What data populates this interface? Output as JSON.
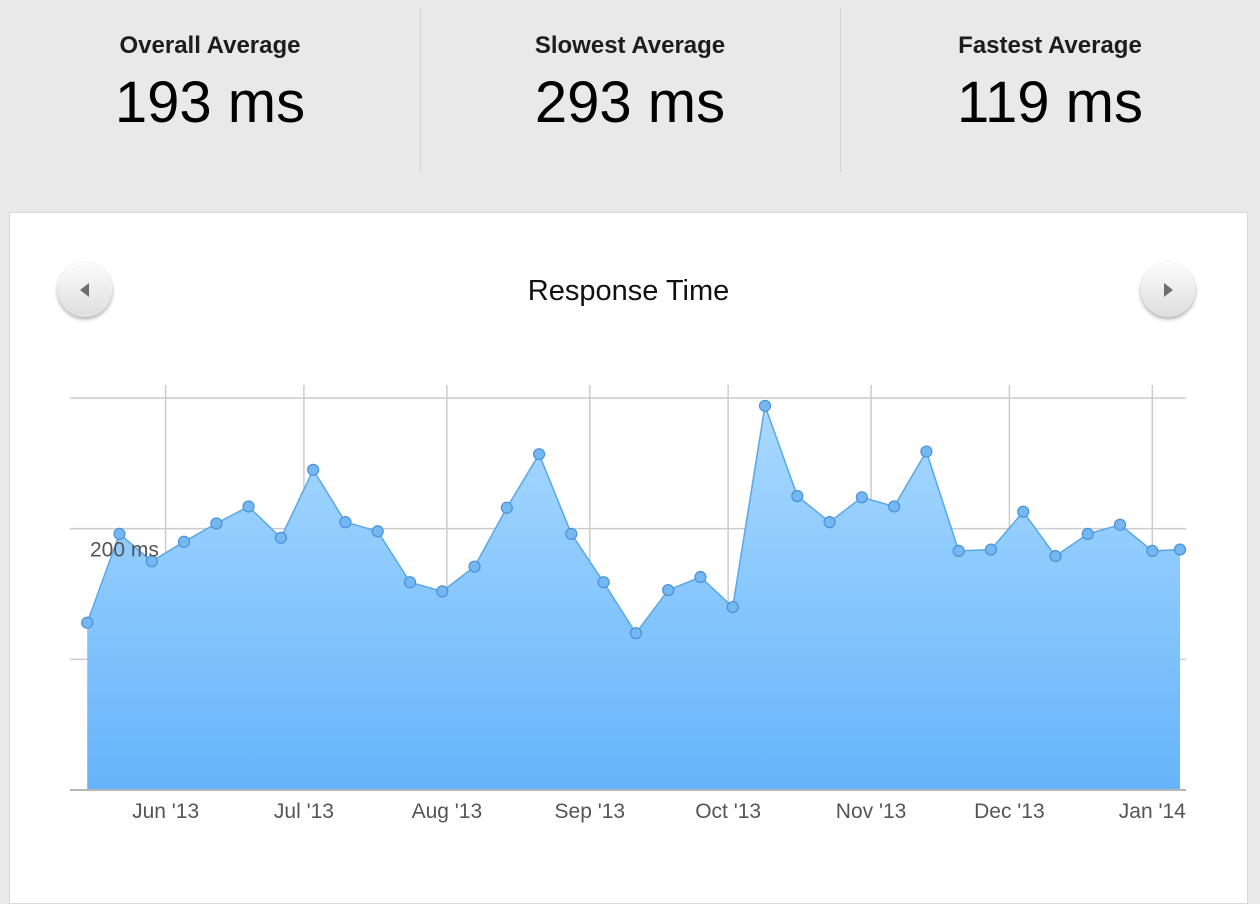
{
  "stats": [
    {
      "label": "Overall Average",
      "value": "193 ms"
    },
    {
      "label": "Slowest Average",
      "value": "293 ms"
    },
    {
      "label": "Fastest Average",
      "value": "119 ms"
    }
  ],
  "nav": {
    "prev_icon": "triangle-left-icon",
    "next_icon": "triangle-right-icon"
  },
  "colors": {
    "line": "#5aa7e8",
    "fill_top": "#a9d9ff",
    "fill_bottom": "#66b4fb",
    "point": "#74b8f2",
    "grid": "#cccccc"
  },
  "chart_data": {
    "type": "area",
    "title": "Response Time",
    "ytick_labels": [
      "200 ms"
    ],
    "y_ticks": [
      100,
      200,
      300
    ],
    "ylim": [
      0,
      300
    ],
    "x_tick_labels": [
      "Jun '13",
      "Jul '13",
      "Aug '13",
      "Sep '13",
      "Oct '13",
      "Nov '13",
      "Dec '13",
      "Jan '14"
    ],
    "x_tick_dates": [
      "2013-06-01",
      "2013-07-01",
      "2013-08-01",
      "2013-09-01",
      "2013-10-01",
      "2013-11-01",
      "2013-12-01",
      "2014-01-01"
    ],
    "xlim": [
      "2013-05-13",
      "2014-01-07"
    ],
    "grid": true,
    "series": [
      {
        "x": [
          "2013-05-15",
          "2013-05-22",
          "2013-05-29",
          "2013-06-05",
          "2013-06-12",
          "2013-06-19",
          "2013-06-26",
          "2013-07-03",
          "2013-07-10",
          "2013-07-17",
          "2013-07-24",
          "2013-07-31",
          "2013-08-07",
          "2013-08-14",
          "2013-08-21",
          "2013-08-28",
          "2013-09-04",
          "2013-09-11",
          "2013-09-18",
          "2013-09-25",
          "2013-10-02",
          "2013-10-09",
          "2013-10-16",
          "2013-10-23",
          "2013-10-30",
          "2013-11-06",
          "2013-11-13",
          "2013-11-20",
          "2013-11-27",
          "2013-12-04",
          "2013-12-11",
          "2013-12-18",
          "2013-12-25",
          "2014-01-01",
          "2014-01-07"
        ],
        "values": [
          128,
          196,
          175,
          190,
          204,
          217,
          193,
          245,
          205,
          198,
          159,
          152,
          171,
          216,
          257,
          196,
          159,
          120,
          153,
          163,
          140,
          294,
          225,
          205,
          224,
          217,
          259,
          183,
          184,
          213,
          179,
          196,
          203,
          183,
          184
        ]
      }
    ]
  }
}
